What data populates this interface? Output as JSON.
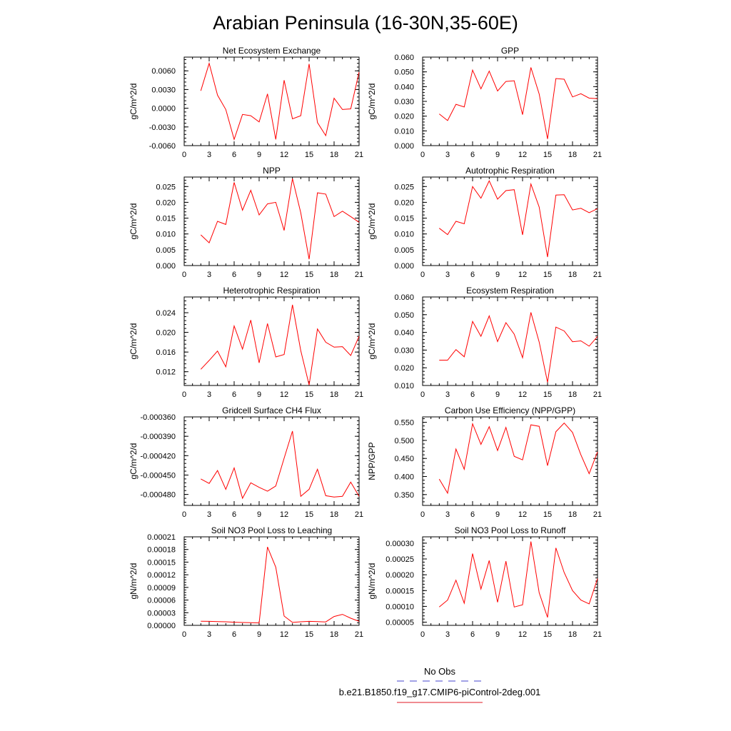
{
  "figure": {
    "title": "Arabian Peninsula (16-30N,35-60E)",
    "legend": {
      "entries": [
        {
          "label": "No Obs",
          "color": "#6b6bd6",
          "style": "dashed"
        },
        {
          "label": "b.e21.B1850.f19_g17.CMIP6-piControl-2deg.001",
          "color": "#e8484f",
          "style": "solid"
        }
      ]
    }
  },
  "chart_data": [
    {
      "type": "line",
      "title": "Net Ecosystem Exchange",
      "ylabel": "gC/m^2/d",
      "xlim": [
        0,
        21
      ],
      "xticks": [
        "0",
        "3",
        "6",
        "9",
        "12",
        "15",
        "18",
        "21"
      ],
      "ylim": [
        -0.006,
        0.0082
      ],
      "yticks": [
        "-0.0060",
        "-0.0030",
        "0.0000",
        "0.0030",
        "0.0060"
      ],
      "color": "#ff0000",
      "x": [
        2,
        3,
        4,
        5,
        6,
        7,
        8,
        9,
        10,
        11,
        12,
        13,
        14,
        15,
        16,
        17,
        18,
        19,
        20,
        21
      ],
      "values": [
        0.0028,
        0.0072,
        0.0021,
        -0.0002,
        -0.005,
        -0.001,
        -0.0012,
        -0.0022,
        0.0023,
        -0.005,
        0.0045,
        -0.0017,
        -0.0012,
        0.0071,
        -0.0023,
        -0.0044,
        0.0016,
        -0.0002,
        -0.0001,
        0.0058
      ]
    },
    {
      "type": "line",
      "title": "GPP",
      "ylabel": "gC/m^2/d",
      "xlim": [
        0,
        21
      ],
      "xticks": [
        "0",
        "3",
        "6",
        "9",
        "12",
        "15",
        "18",
        "21"
      ],
      "ylim": [
        0,
        0.06
      ],
      "yticks": [
        "0.000",
        "0.010",
        "0.020",
        "0.030",
        "0.040",
        "0.050",
        "0.060"
      ],
      "color": "#ff0000",
      "x": [
        2,
        3,
        4,
        5,
        6,
        7,
        8,
        9,
        10,
        11,
        12,
        13,
        14,
        15,
        16,
        17,
        18,
        19,
        20,
        21
      ],
      "values": [
        0.0215,
        0.017,
        0.028,
        0.0262,
        0.0512,
        0.0385,
        0.0505,
        0.037,
        0.0435,
        0.044,
        0.021,
        0.053,
        0.035,
        0.0045,
        0.0455,
        0.045,
        0.033,
        0.0352,
        0.0322,
        0.0318
      ]
    },
    {
      "type": "line",
      "title": "NPP",
      "ylabel": "gC/m^2/d",
      "xlim": [
        0,
        21
      ],
      "xticks": [
        "0",
        "3",
        "6",
        "9",
        "12",
        "15",
        "18",
        "21"
      ],
      "ylim": [
        0,
        0.028
      ],
      "yticks": [
        "0.000",
        "0.005",
        "0.010",
        "0.015",
        "0.020",
        "0.025"
      ],
      "color": "#ff0000",
      "x": [
        2,
        3,
        4,
        5,
        6,
        7,
        8,
        9,
        10,
        11,
        12,
        13,
        14,
        15,
        16,
        17,
        18,
        19,
        20,
        21
      ],
      "values": [
        0.0097,
        0.0072,
        0.014,
        0.013,
        0.0263,
        0.0175,
        0.0238,
        0.016,
        0.0195,
        0.02,
        0.0111,
        0.0275,
        0.0167,
        0.002,
        0.023,
        0.0226,
        0.0155,
        0.0172,
        0.0155,
        0.0137
      ]
    },
    {
      "type": "line",
      "title": "Autotrophic Respiration",
      "ylabel": "gC/m^2/d",
      "xlim": [
        0,
        21
      ],
      "xticks": [
        "0",
        "3",
        "6",
        "9",
        "12",
        "15",
        "18",
        "21"
      ],
      "ylim": [
        0,
        0.028
      ],
      "yticks": [
        "0.000",
        "0.005",
        "0.010",
        "0.015",
        "0.020",
        "0.025"
      ],
      "color": "#ff0000",
      "x": [
        2,
        3,
        4,
        5,
        6,
        7,
        8,
        9,
        10,
        11,
        12,
        13,
        14,
        15,
        16,
        17,
        18,
        19,
        20,
        21
      ],
      "values": [
        0.0118,
        0.0098,
        0.014,
        0.0132,
        0.025,
        0.0213,
        0.0268,
        0.021,
        0.0237,
        0.024,
        0.0097,
        0.0258,
        0.0185,
        0.0027,
        0.0223,
        0.0224,
        0.0176,
        0.0181,
        0.0167,
        0.018
      ]
    },
    {
      "type": "line",
      "title": "Heterotrophic Respiration",
      "ylabel": "gC/m^2/d",
      "xlim": [
        0,
        21
      ],
      "xticks": [
        "0",
        "3",
        "6",
        "9",
        "12",
        "15",
        "18",
        "21"
      ],
      "ylim": [
        0.0092,
        0.0272
      ],
      "yticks": [
        "0.012",
        "0.016",
        "0.020",
        "0.024"
      ],
      "color": "#ff0000",
      "x": [
        2,
        3,
        4,
        5,
        6,
        7,
        8,
        9,
        10,
        11,
        12,
        13,
        14,
        15,
        16,
        17,
        18,
        19,
        20,
        21
      ],
      "values": [
        0.0125,
        0.0143,
        0.0162,
        0.013,
        0.0213,
        0.0166,
        0.0225,
        0.0138,
        0.0218,
        0.015,
        0.0155,
        0.0256,
        0.0163,
        0.0093,
        0.0207,
        0.018,
        0.017,
        0.0171,
        0.0153,
        0.0192
      ]
    },
    {
      "type": "line",
      "title": "Ecosystem Respiration",
      "ylabel": "gC/m^2/d",
      "xlim": [
        0,
        21
      ],
      "xticks": [
        "0",
        "3",
        "6",
        "9",
        "12",
        "15",
        "18",
        "21"
      ],
      "ylim": [
        0.01,
        0.06
      ],
      "yticks": [
        "0.010",
        "0.020",
        "0.030",
        "0.040",
        "0.050",
        "0.060"
      ],
      "color": "#ff0000",
      "x": [
        2,
        3,
        4,
        5,
        6,
        7,
        8,
        9,
        10,
        11,
        12,
        13,
        14,
        15,
        16,
        17,
        18,
        19,
        20,
        21
      ],
      "values": [
        0.0243,
        0.0243,
        0.0303,
        0.0262,
        0.0462,
        0.0378,
        0.0493,
        0.0348,
        0.0455,
        0.039,
        0.0257,
        0.0513,
        0.0345,
        0.0118,
        0.043,
        0.0408,
        0.0347,
        0.0352,
        0.0322,
        0.0377
      ]
    },
    {
      "type": "line",
      "title": "Gridcell Surface CH4 Flux",
      "ylabel": "gC/m^2/d",
      "xlim": [
        0,
        21
      ],
      "xticks": [
        "0",
        "3",
        "6",
        "9",
        "12",
        "15",
        "18",
        "21"
      ],
      "ylim": [
        -0.000497,
        -0.00036
      ],
      "yticks": [
        "-0.000480",
        "-0.000450",
        "-0.000420",
        "-0.000390",
        "-0.000360"
      ],
      "color": "#ff0000",
      "x": [
        2,
        3,
        4,
        5,
        6,
        7,
        8,
        9,
        10,
        11,
        12,
        13,
        14,
        15,
        16,
        17,
        18,
        19,
        20,
        21
      ],
      "values": [
        -0.000456,
        -0.000463,
        -0.000443,
        -0.000472,
        -0.000439,
        -0.000486,
        -0.000462,
        -0.000469,
        -0.000475,
        -0.000467,
        -0.000424,
        -0.000382,
        -0.000483,
        -0.000472,
        -0.000441,
        -0.000482,
        -0.000484,
        -0.000483,
        -0.000461,
        -0.000483
      ]
    },
    {
      "type": "line",
      "title": "Carbon Use Efficiency (NPP/GPP)",
      "ylabel": "NPP/GPP",
      "xlim": [
        0,
        21
      ],
      "xticks": [
        "0",
        "3",
        "6",
        "9",
        "12",
        "15",
        "18",
        "21"
      ],
      "ylim": [
        0.32,
        0.565
      ],
      "yticks": [
        "0.350",
        "0.400",
        "0.450",
        "0.500",
        "0.550"
      ],
      "color": "#ff0000",
      "x": [
        2,
        3,
        4,
        5,
        6,
        7,
        8,
        9,
        10,
        11,
        12,
        13,
        14,
        15,
        16,
        17,
        18,
        19,
        20,
        21
      ],
      "values": [
        0.393,
        0.354,
        0.476,
        0.42,
        0.546,
        0.489,
        0.538,
        0.472,
        0.536,
        0.456,
        0.446,
        0.543,
        0.539,
        0.43,
        0.524,
        0.548,
        0.522,
        0.46,
        0.408,
        0.468
      ]
    },
    {
      "type": "line",
      "title": "Soil NO3 Pool Loss to Leaching",
      "ylabel": "gN/m^2/d",
      "xlim": [
        0,
        21
      ],
      "xticks": [
        "0",
        "3",
        "6",
        "9",
        "12",
        "15",
        "18",
        "21"
      ],
      "ylim": [
        0,
        0.00021
      ],
      "yticks": [
        "0.00000",
        "0.00003",
        "0.00006",
        "0.00009",
        "0.00012",
        "0.00015",
        "0.00018",
        "0.00021"
      ],
      "color": "#ff0000",
      "x": [
        2,
        3,
        4,
        5,
        6,
        7,
        8,
        9,
        10,
        11,
        12,
        13,
        14,
        15,
        16,
        17,
        18,
        19,
        20,
        21
      ],
      "values": [
        9.8e-06,
        9.5e-06,
        9e-06,
        8.5e-06,
        7.5e-06,
        6.8e-06,
        6.2e-06,
        5.8e-06,
        0.000186,
        0.000138,
        2.2e-05,
        7e-06,
        8.5e-06,
        9.5e-06,
        9e-06,
        8.2e-06,
        2.1e-05,
        2.6e-05,
        1.7e-05,
        9.5e-06
      ]
    },
    {
      "type": "line",
      "title": "Soil NO3 Pool Loss to Runoff",
      "ylabel": "gN/m^2/d",
      "xlim": [
        0,
        21
      ],
      "xticks": [
        "0",
        "3",
        "6",
        "9",
        "12",
        "15",
        "18",
        "21"
      ],
      "ylim": [
        4e-05,
        0.00032
      ],
      "yticks": [
        "0.00005",
        "0.00010",
        "0.00015",
        "0.00020",
        "0.00025",
        "0.00030"
      ],
      "color": "#ff0000",
      "x": [
        2,
        3,
        4,
        5,
        6,
        7,
        8,
        9,
        10,
        11,
        12,
        13,
        14,
        15,
        16,
        17,
        18,
        19,
        20,
        21
      ],
      "values": [
        9.8e-05,
        0.00012,
        0.000183,
        0.00011,
        0.000267,
        0.000155,
        0.000245,
        0.000113,
        0.000243,
        9.8e-05,
        0.000105,
        0.000305,
        0.000143,
        6.5e-05,
        0.000285,
        0.000207,
        0.00015,
        0.00012,
        0.000108,
        0.000188
      ]
    }
  ]
}
